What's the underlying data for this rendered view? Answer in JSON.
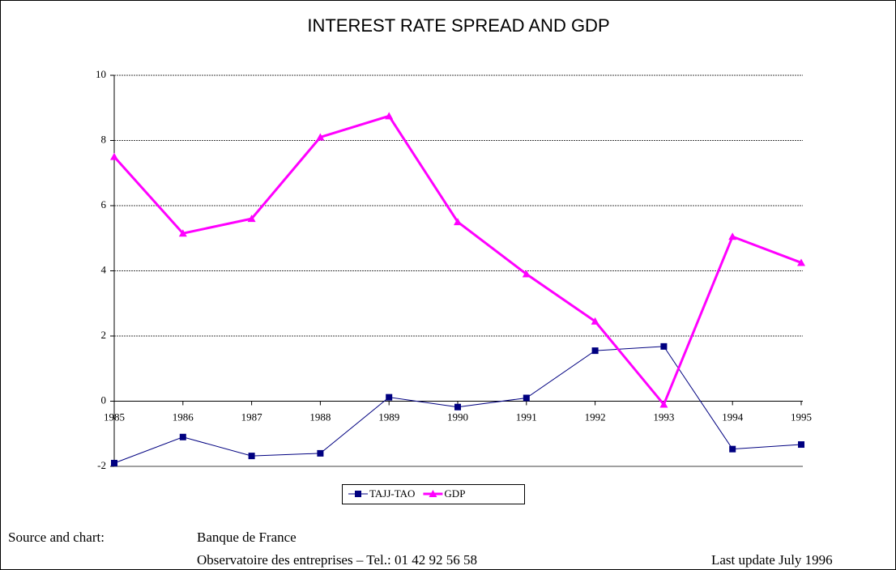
{
  "chart_data": {
    "type": "line",
    "title": "INTEREST RATE SPREAD AND GDP",
    "categories": [
      "1985",
      "1986",
      "1987",
      "1988",
      "1989",
      "1990",
      "1991",
      "1992",
      "1993",
      "1994",
      "1995"
    ],
    "series": [
      {
        "name": "TAJJ-TAO",
        "color": "#000080",
        "marker": "square",
        "values": [
          -1.9,
          -1.1,
          -1.68,
          -1.6,
          0.12,
          -0.18,
          0.1,
          1.55,
          1.68,
          -1.47,
          -1.33
        ]
      },
      {
        "name": "GDP",
        "color": "#ff00ff",
        "marker": "triangle",
        "values": [
          7.5,
          5.15,
          5.6,
          8.1,
          8.75,
          5.5,
          3.9,
          2.45,
          -0.1,
          5.05,
          4.25
        ]
      }
    ],
    "ylim": [
      -2,
      10
    ],
    "yticks": [
      -2,
      0,
      2,
      4,
      6,
      8,
      10
    ],
    "grid": true,
    "legend": "bottom"
  },
  "footer": {
    "source_label": "Source and chart:",
    "source": "Banque de France",
    "address": "Observatoire des entreprises – Tel.: 01 42 92 56 58",
    "update": "Last update July 1996"
  }
}
